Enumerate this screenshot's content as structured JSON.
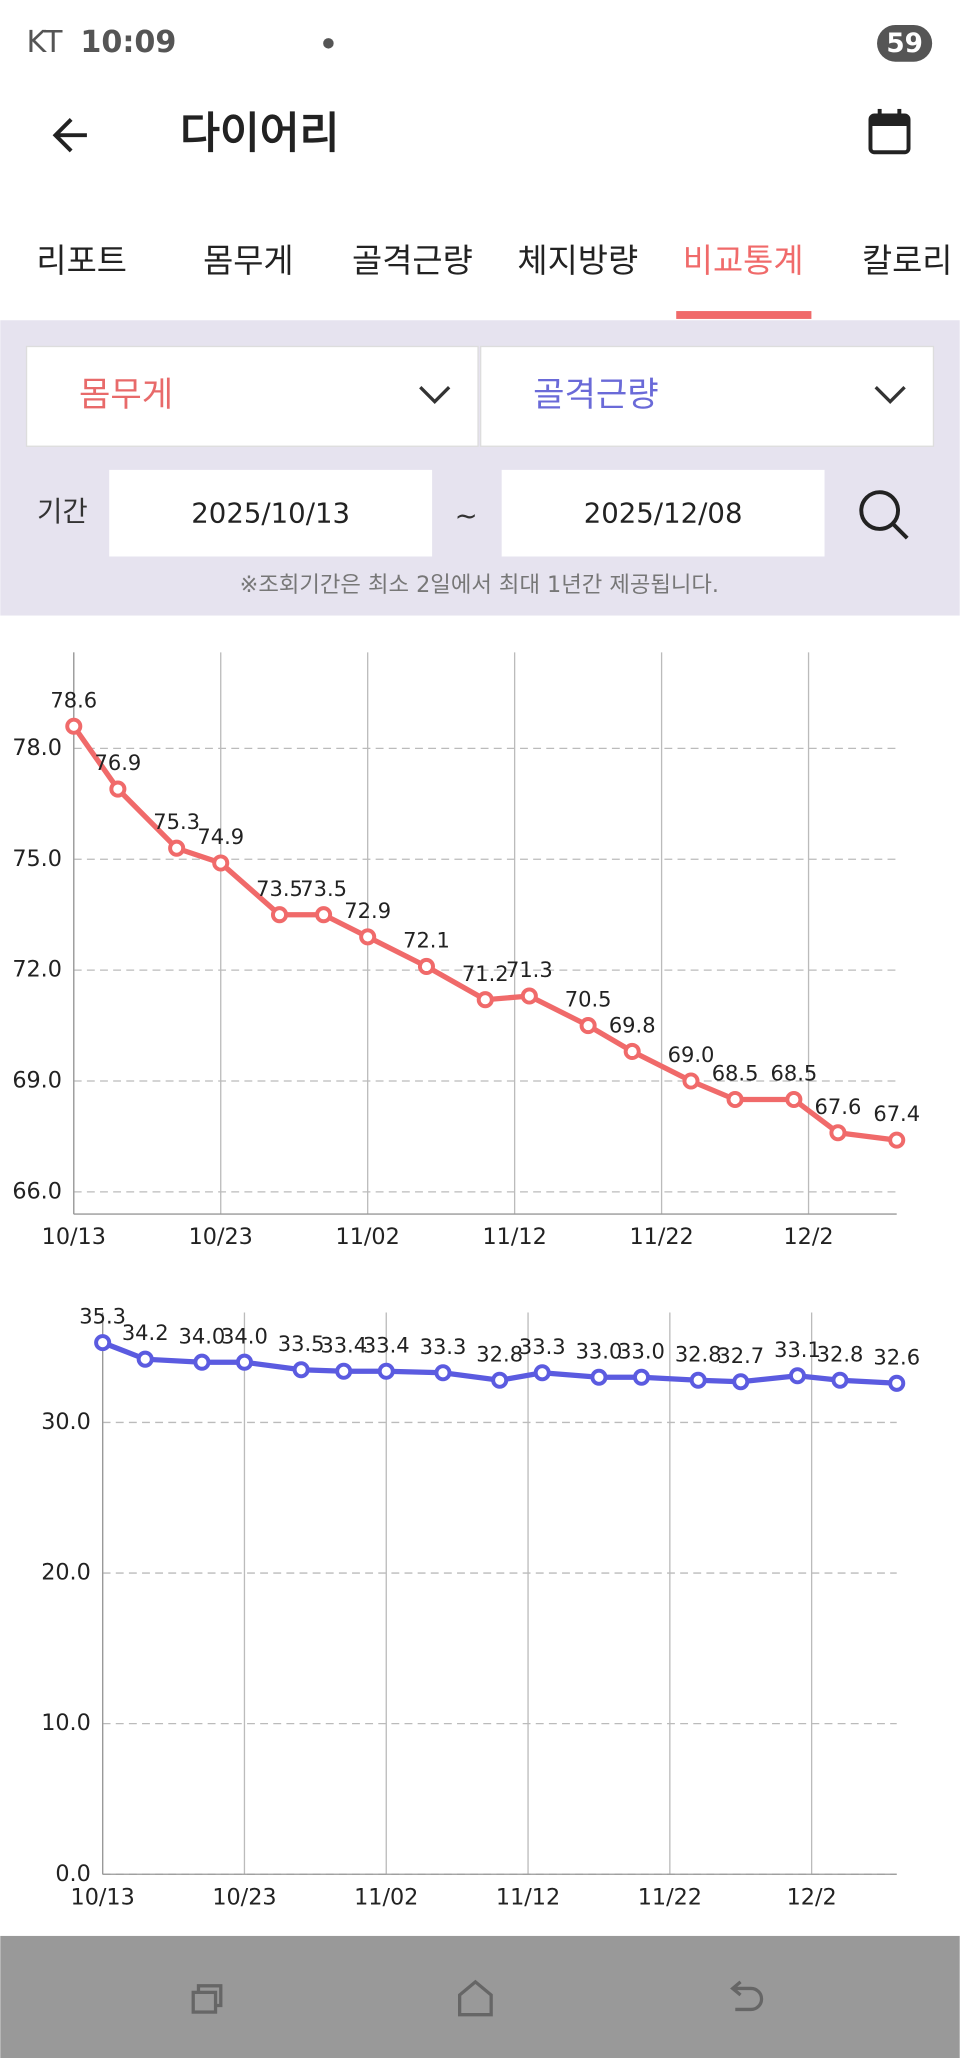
{
  "status_bar": {
    "carrier": "KT",
    "time": "10:09",
    "battery": "59"
  },
  "header": {
    "title": "다이어리"
  },
  "tabs": {
    "items": [
      "리포트",
      "몸무게",
      "골격근량",
      "체지방량",
      "비교통계",
      "칼로리"
    ],
    "active": 4
  },
  "filters": {
    "left": "몸무게",
    "right": "골격근량",
    "period_label": "기간",
    "start": "2025/10/13",
    "separator": "~",
    "end": "2025/12/08",
    "note": "※조회기간은 최소 2일에서 최대 1년간 제공됩니다."
  },
  "chart_data": [
    {
      "type": "line",
      "color": "#f06a6a",
      "grid": true,
      "x": [
        0,
        3,
        7,
        10,
        14,
        17,
        20,
        24,
        28,
        31,
        35,
        38,
        42,
        45,
        49,
        52,
        56
      ],
      "values": [
        78.6,
        76.9,
        75.3,
        74.9,
        73.5,
        73.5,
        72.9,
        72.1,
        71.2,
        71.3,
        70.5,
        69.8,
        69.0,
        68.5,
        68.5,
        67.6,
        67.4
      ],
      "value_labels": [
        "78.6",
        "76.9",
        "75.3",
        "74.9",
        "73.5",
        "73.5",
        "72.9",
        "72.1",
        "71.2",
        "71.3",
        "70.5",
        "69.8",
        "69.0",
        "68.5",
        "68.5",
        "67.6",
        "67.4"
      ],
      "xlim": [
        0,
        56
      ],
      "xticks": [
        {
          "value": 0,
          "label": "10/13"
        },
        {
          "value": 10,
          "label": "10/23"
        },
        {
          "value": 20,
          "label": "11/02"
        },
        {
          "value": 30,
          "label": "11/12"
        },
        {
          "value": 40,
          "label": "11/22"
        },
        {
          "value": 50,
          "label": "12/2"
        }
      ],
      "ylim": [
        65.4,
        80.6
      ],
      "yticks": [
        {
          "value": 66,
          "label": "66.0"
        },
        {
          "value": 69,
          "label": "69.0"
        },
        {
          "value": 72,
          "label": "72.0"
        },
        {
          "value": 75,
          "label": "75.0"
        },
        {
          "value": 78,
          "label": "78.0"
        }
      ]
    },
    {
      "type": "line",
      "color": "#5b5be0",
      "grid": true,
      "x": [
        0,
        3,
        7,
        10,
        14,
        17,
        20,
        24,
        28,
        31,
        35,
        38,
        42,
        45,
        49,
        52,
        56
      ],
      "values": [
        35.3,
        34.2,
        34.0,
        34.0,
        33.5,
        33.4,
        33.4,
        33.3,
        32.8,
        33.3,
        33.0,
        33.0,
        32.8,
        32.7,
        33.1,
        32.8,
        32.6
      ],
      "value_labels": [
        "35.3",
        "34.2",
        "34.0",
        "34.0",
        "33.5",
        "33.4",
        "33.4",
        "33.3",
        "32.8",
        "33.3",
        "33.0",
        "33.0",
        "32.8",
        "32.7",
        "33.1",
        "32.8",
        "32.6"
      ],
      "xlim": [
        0,
        56
      ],
      "xticks": [
        {
          "value": 0,
          "label": "10/13"
        },
        {
          "value": 10,
          "label": "10/23"
        },
        {
          "value": 20,
          "label": "11/02"
        },
        {
          "value": 30,
          "label": "11/12"
        },
        {
          "value": 40,
          "label": "11/22"
        },
        {
          "value": 50,
          "label": "12/2"
        }
      ],
      "ylim": [
        0,
        37.3
      ],
      "yticks": [
        {
          "value": 0,
          "label": "0.0"
        },
        {
          "value": 10,
          "label": "10.0"
        },
        {
          "value": 20,
          "label": "20.0"
        },
        {
          "value": 30,
          "label": "30.0"
        }
      ]
    }
  ]
}
